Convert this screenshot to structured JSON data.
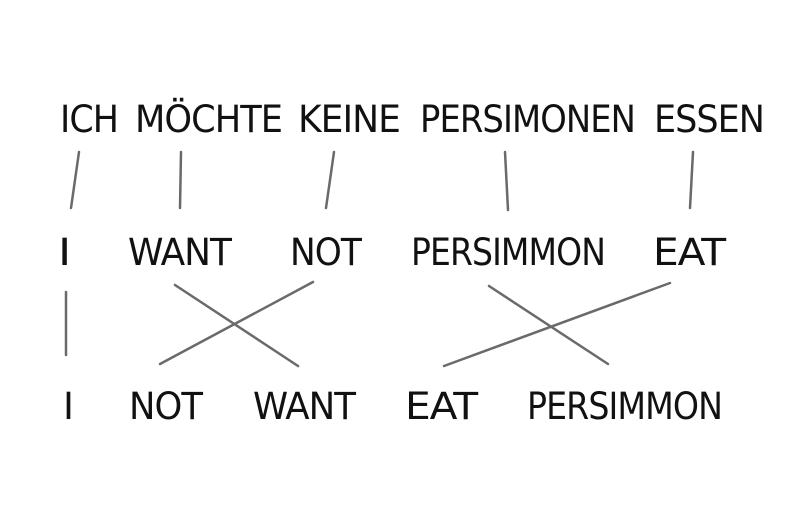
{
  "german_row": {
    "words": [
      "ICH",
      "MÖCHTE",
      "KEINE",
      "PERSIMONEN",
      "ESSEN"
    ]
  },
  "literal_row": {
    "words": [
      "I",
      "WANT",
      "NOT",
      "PERSIMMON",
      "EAT"
    ]
  },
  "reordered_row": {
    "words": [
      "I",
      "NOT",
      "WANT",
      "EAT",
      "PERSIMMON"
    ]
  }
}
